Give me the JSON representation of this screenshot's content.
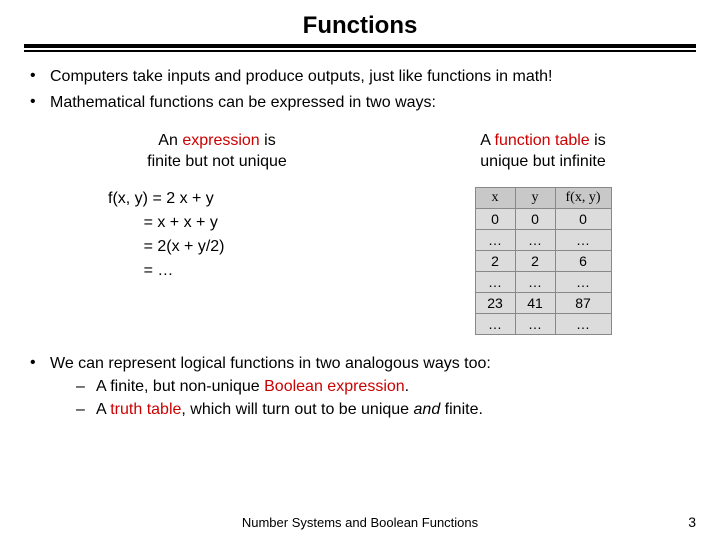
{
  "title": "Functions",
  "bullets": [
    "Computers take inputs and produce outputs, just like functions in math!",
    "Mathematical functions can be expressed in two ways:"
  ],
  "left": {
    "caption_pre": "An ",
    "caption_emph": "expression",
    "caption_post": " is\nfinite but not unique",
    "expr_lhs": "f(x, y) ",
    "expr_lines": [
      "= 2 x + y",
      "= x + x + y",
      "= 2(x + y/2)",
      "= …"
    ]
  },
  "right": {
    "caption_pre": "A ",
    "caption_emph": "function table",
    "caption_post": " is\nunique but infinite",
    "table": {
      "headers": [
        "x",
        "y",
        "f(x, y)"
      ],
      "rows": [
        [
          "0",
          "0",
          "0"
        ],
        [
          "…",
          "…",
          "…"
        ],
        [
          "2",
          "2",
          "6"
        ],
        [
          "…",
          "…",
          "…"
        ],
        [
          "23",
          "41",
          "87"
        ],
        [
          "…",
          "…",
          "…"
        ]
      ]
    }
  },
  "bullet3": "We can represent logical functions in two analogous ways too:",
  "sub": [
    {
      "pre": "A finite, but non-unique ",
      "emph": "Boolean expression",
      "post": "."
    },
    {
      "pre": "A ",
      "emph": "truth table",
      "post": ", which will turn out to be unique ",
      "ital": "and",
      "post2": " finite."
    }
  ],
  "footer": "Number Systems and Boolean Functions",
  "page": "3",
  "colors": {
    "accent": "#cc0000"
  }
}
